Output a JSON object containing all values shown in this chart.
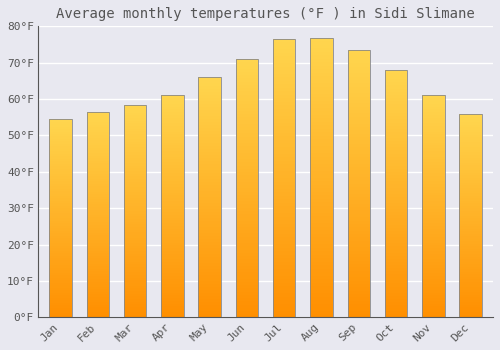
{
  "title": "Average monthly temperatures (°F ) in Sidi Slimane",
  "months": [
    "Jan",
    "Feb",
    "Mar",
    "Apr",
    "May",
    "Jun",
    "Jul",
    "Aug",
    "Sep",
    "Oct",
    "Nov",
    "Dec"
  ],
  "values": [
    54.5,
    56.5,
    58.5,
    61.0,
    66.0,
    71.0,
    76.5,
    76.8,
    73.5,
    68.0,
    61.0,
    55.8
  ],
  "bar_color_top": "#FFD54F",
  "bar_color_bottom": "#FF8F00",
  "bar_edge_color": "#888888",
  "background_color": "#e8e8f0",
  "grid_color": "#ffffff",
  "text_color": "#555555",
  "ylim": [
    0,
    80
  ],
  "ytick_step": 10,
  "title_fontsize": 10,
  "tick_fontsize": 8,
  "font_family": "monospace"
}
